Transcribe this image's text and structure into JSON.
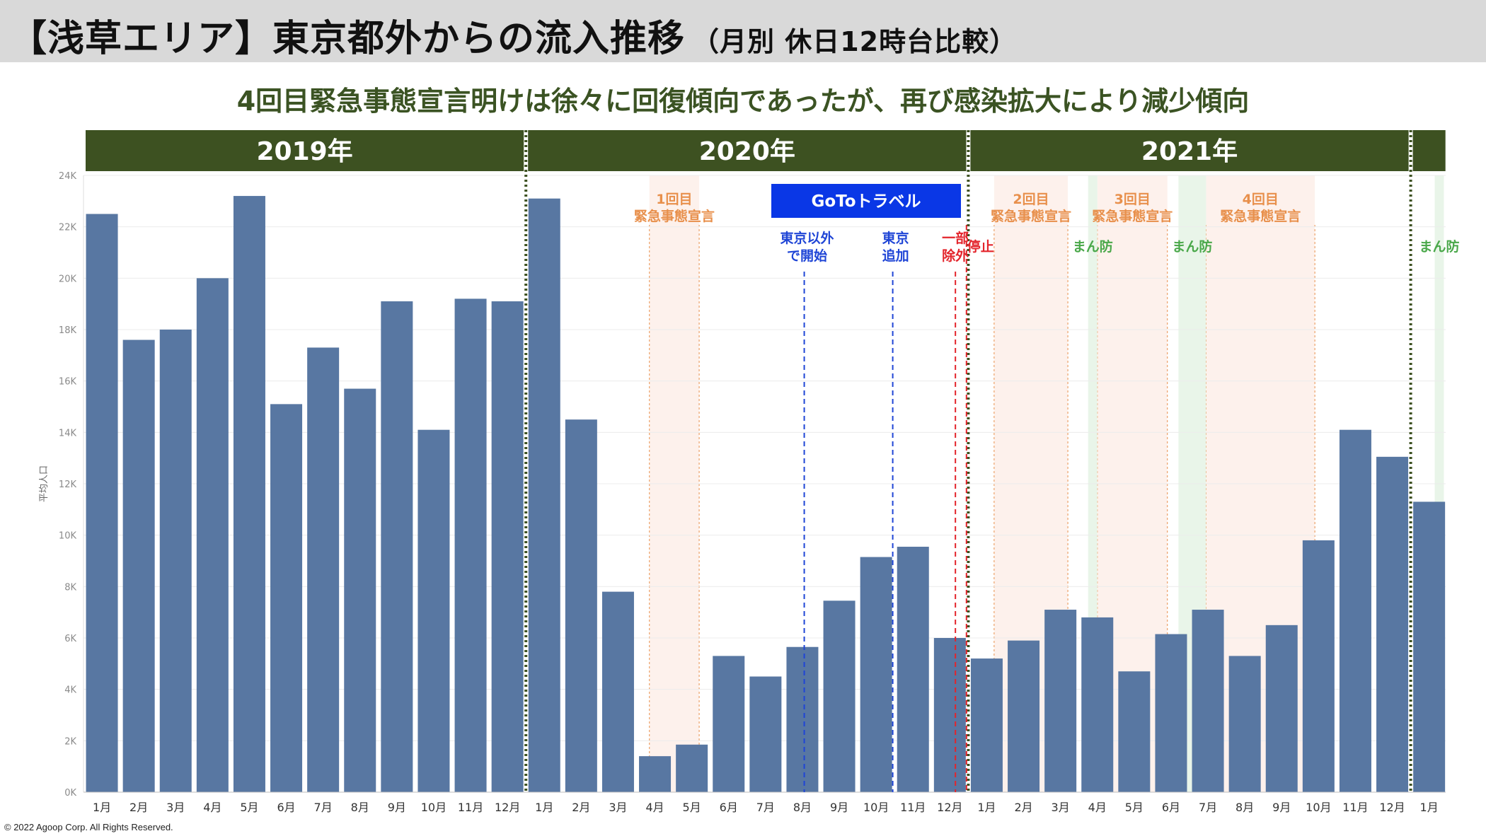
{
  "header": {
    "title": "【浅草エリア】東京都外からの流入推移",
    "title_note": "（月別 休日12時台比較）",
    "subtitle": "4回目緊急事態宣言明けは徐々に回復傾向であったが、再び感染拡大により減少傾向"
  },
  "footer": {
    "copyright": "© 2022 Agoop Corp. All Rights Reserved."
  },
  "colors": {
    "bar": "#5877a2",
    "year_band": "#3d5121",
    "emergency_text": "#e8904c",
    "emergency_fill": "#fdf1ec",
    "manbou_text": "#4aa84a",
    "manbou_fill": "#e9f5e9",
    "goto_box": "#0a37e6",
    "goto_line": "#1f45d6",
    "stop_red": "#e3242b"
  },
  "chart_data": {
    "type": "bar",
    "ylabel": "平均人口",
    "ylim": [
      0,
      24000
    ],
    "y_ticks": [
      "0K",
      "2K",
      "4K",
      "6K",
      "8K",
      "10K",
      "12K",
      "14K",
      "16K",
      "18K",
      "20K",
      "22K",
      "24K"
    ],
    "categories": [
      "1月",
      "2月",
      "3月",
      "4月",
      "5月",
      "6月",
      "7月",
      "8月",
      "9月",
      "10月",
      "11月",
      "12月",
      "1月",
      "2月",
      "3月",
      "4月",
      "5月",
      "6月",
      "7月",
      "8月",
      "9月",
      "10月",
      "11月",
      "12月",
      "1月",
      "2月",
      "3月",
      "4月",
      "5月",
      "6月",
      "7月",
      "8月",
      "9月",
      "10月",
      "11月",
      "12月",
      "1月"
    ],
    "values": [
      22500,
      17600,
      18000,
      20000,
      23200,
      15100,
      17300,
      15700,
      19100,
      14100,
      19200,
      19100,
      23100,
      14500,
      7800,
      1400,
      1850,
      5300,
      4500,
      5650,
      7450,
      9150,
      9550,
      6000,
      5200,
      5900,
      7100,
      6800,
      4700,
      6150,
      7100,
      5300,
      6500,
      9800,
      14100,
      13050,
      11300
    ],
    "year_groups": [
      {
        "label": "2019年",
        "start": 0,
        "end": 11
      },
      {
        "label": "2020年",
        "start": 12,
        "end": 23
      },
      {
        "label": "2021年",
        "start": 24,
        "end": 35
      },
      {
        "label": "",
        "start": 36,
        "end": 36
      }
    ],
    "year_separators": [
      11.5,
      23.5,
      35.5
    ],
    "emergency_periods": [
      {
        "label_lines": [
          "1回目",
          "緊急事態宣言"
        ],
        "from": 14.85,
        "to": 16.2
      },
      {
        "label_lines": [
          "2回目",
          "緊急事態宣言"
        ],
        "from": 24.2,
        "to": 26.2
      },
      {
        "label_lines": [
          "3回目",
          "緊急事態宣言"
        ],
        "from": 27.0,
        "to": 28.9
      },
      {
        "label_lines": [
          "4回目",
          "緊急事態宣言"
        ],
        "from": 29.95,
        "to": 32.9
      }
    ],
    "manbou_periods": [
      {
        "label": "まん防",
        "from": 26.75,
        "to": 27.0
      },
      {
        "label": "まん防",
        "from": 29.2,
        "to": 29.95
      },
      {
        "label": "まん防",
        "from": 36.15,
        "to": 36.4
      }
    ],
    "goto": {
      "label": "GoToトラベル",
      "events": [
        {
          "label_lines": [
            "東京以外",
            "で開始"
          ],
          "at": 19.05,
          "color": "blue"
        },
        {
          "label_lines": [
            "東京",
            "追加"
          ],
          "at": 21.45,
          "color": "blue"
        },
        {
          "label_lines": [
            "一部",
            "除外"
          ],
          "at": 23.15,
          "color": "red"
        },
        {
          "label_lines": [
            "停止"
          ],
          "at": 23.45,
          "color": "red"
        }
      ]
    }
  }
}
